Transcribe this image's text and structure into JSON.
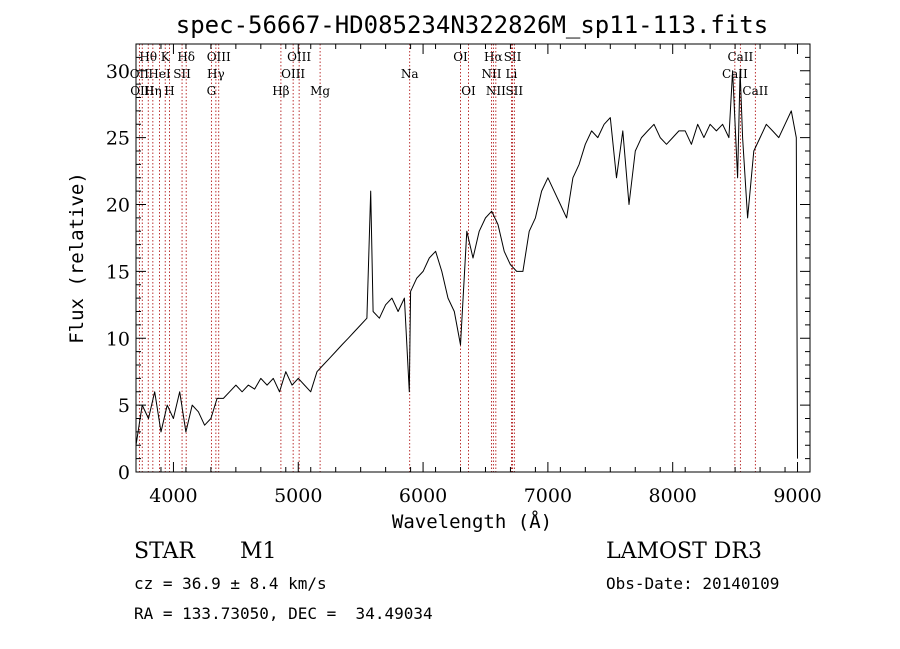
{
  "chart_data": {
    "type": "line",
    "title": "spec-56667-HD085234N322826M_sp11-113.fits",
    "xlabel": "Wavelength (Å)",
    "ylabel": "Flux (relative)",
    "xlim": [
      3700,
      9100
    ],
    "ylim": [
      0,
      32
    ],
    "xticks": [
      4000,
      5000,
      6000,
      7000,
      8000,
      9000
    ],
    "yticks": [
      0,
      5,
      10,
      15,
      20,
      25,
      30
    ],
    "grid": false,
    "series": [
      {
        "x": [
          3700,
          3750,
          3800,
          3850,
          3900,
          3950,
          4000,
          4050,
          4100,
          4150,
          4200,
          4250,
          4300,
          4350,
          4400,
          4450,
          4500,
          4550,
          4600,
          4650,
          4700,
          4750,
          4800,
          4850,
          4900,
          4950,
          5000,
          5050,
          5100,
          5150,
          5200,
          5250,
          5300,
          5350,
          5400,
          5450,
          5500,
          5550,
          5580,
          5600,
          5650,
          5700,
          5750,
          5800,
          5850,
          5890,
          5900,
          5950,
          6000,
          6050,
          6100,
          6150,
          6200,
          6250,
          6300,
          6350,
          6400,
          6450,
          6500,
          6550,
          6600,
          6650,
          6700,
          6750,
          6800,
          6850,
          6900,
          6950,
          7000,
          7050,
          7100,
          7150,
          7200,
          7250,
          7300,
          7350,
          7400,
          7450,
          7500,
          7550,
          7600,
          7650,
          7700,
          7750,
          7800,
          7850,
          7900,
          7950,
          8000,
          8050,
          8100,
          8150,
          8200,
          8250,
          8300,
          8350,
          8400,
          8450,
          8480,
          8500,
          8520,
          8540,
          8560,
          8600,
          8650,
          8700,
          8750,
          8800,
          8850,
          8900,
          8950,
          8990,
          9000
        ],
        "y": [
          2,
          5,
          4,
          6,
          3,
          5,
          4,
          6,
          3,
          5,
          4.5,
          3.5,
          4,
          5.5,
          5.5,
          6,
          6.5,
          6,
          6.5,
          6.2,
          7,
          6.5,
          7,
          6,
          7.5,
          6.5,
          7,
          6.5,
          6,
          7.5,
          8,
          8.5,
          9,
          9.5,
          10,
          10.5,
          11,
          11.5,
          21,
          12,
          11.5,
          12.5,
          13,
          12,
          13,
          6,
          13.5,
          14.5,
          15,
          16,
          16.5,
          15,
          13,
          12,
          9.5,
          18,
          16,
          18,
          19,
          19.5,
          18.5,
          16.5,
          15.5,
          15,
          15,
          18,
          19,
          21,
          22,
          21,
          20,
          19,
          22,
          23,
          24.5,
          25.5,
          25,
          26,
          26.5,
          22,
          25.5,
          20,
          24,
          25,
          25.5,
          26,
          25,
          24.5,
          25,
          25.5,
          25.5,
          24.5,
          26,
          25,
          26,
          25.5,
          26,
          25,
          30,
          26,
          22,
          30,
          25,
          19,
          24,
          25,
          26,
          25.5,
          25,
          26,
          27,
          25,
          1
        ]
      }
    ],
    "spectral_lines": [
      {
        "label": "Hθ",
        "x": 3798,
        "row": 0
      },
      {
        "label": "K",
        "x": 3934,
        "row": 0
      },
      {
        "label": "Hδ",
        "x": 4102,
        "row": 0
      },
      {
        "label": "OIII",
        "x": 4363,
        "row": 0
      },
      {
        "label": "OIII",
        "x": 5007,
        "row": 0
      },
      {
        "label": "OI",
        "x": 6300,
        "row": 0
      },
      {
        "label": "Hα",
        "x": 6563,
        "row": 0
      },
      {
        "label": "SII",
        "x": 6717,
        "row": 0
      },
      {
        "label": "CaII",
        "x": 8542,
        "row": 0
      },
      {
        "label": "OII",
        "x": 3727,
        "row": 1
      },
      {
        "label": "HeI",
        "x": 3889,
        "row": 1
      },
      {
        "label": "SII",
        "x": 4069,
        "row": 1
      },
      {
        "label": "Hγ",
        "x": 4340,
        "row": 1
      },
      {
        "label": "OIII",
        "x": 4959,
        "row": 1
      },
      {
        "label": "Na",
        "x": 5893,
        "row": 1
      },
      {
        "label": "NII",
        "x": 6548,
        "row": 1
      },
      {
        "label": "Li",
        "x": 6708,
        "row": 1
      },
      {
        "label": "CaII",
        "x": 8498,
        "row": 1
      },
      {
        "label": "OIII",
        "x": 3750,
        "row": 2
      },
      {
        "label": "Hη",
        "x": 3835,
        "row": 2
      },
      {
        "label": "H",
        "x": 3968,
        "row": 2
      },
      {
        "label": "G",
        "x": 4304,
        "row": 2
      },
      {
        "label": "Hβ",
        "x": 4861,
        "row": 2
      },
      {
        "label": "Mg",
        "x": 5175,
        "row": 2
      },
      {
        "label": "OI",
        "x": 6364,
        "row": 2
      },
      {
        "label": "NII",
        "x": 6583,
        "row": 2
      },
      {
        "label": "SII",
        "x": 6731,
        "row": 2
      },
      {
        "label": "CaII",
        "x": 8662,
        "row": 2
      }
    ]
  },
  "info": {
    "object_class": "STAR",
    "subclass": "M1",
    "survey": "LAMOST DR3",
    "cz": "cz = 36.9 ± 8.4 km/s",
    "obs_date": "Obs-Date: 20140109",
    "coords": "RA = 133.73050, DEC =  34.49034"
  },
  "colors": {
    "spectrum": "#000000",
    "line_markers": "#aa0000",
    "axes": "#000000"
  }
}
